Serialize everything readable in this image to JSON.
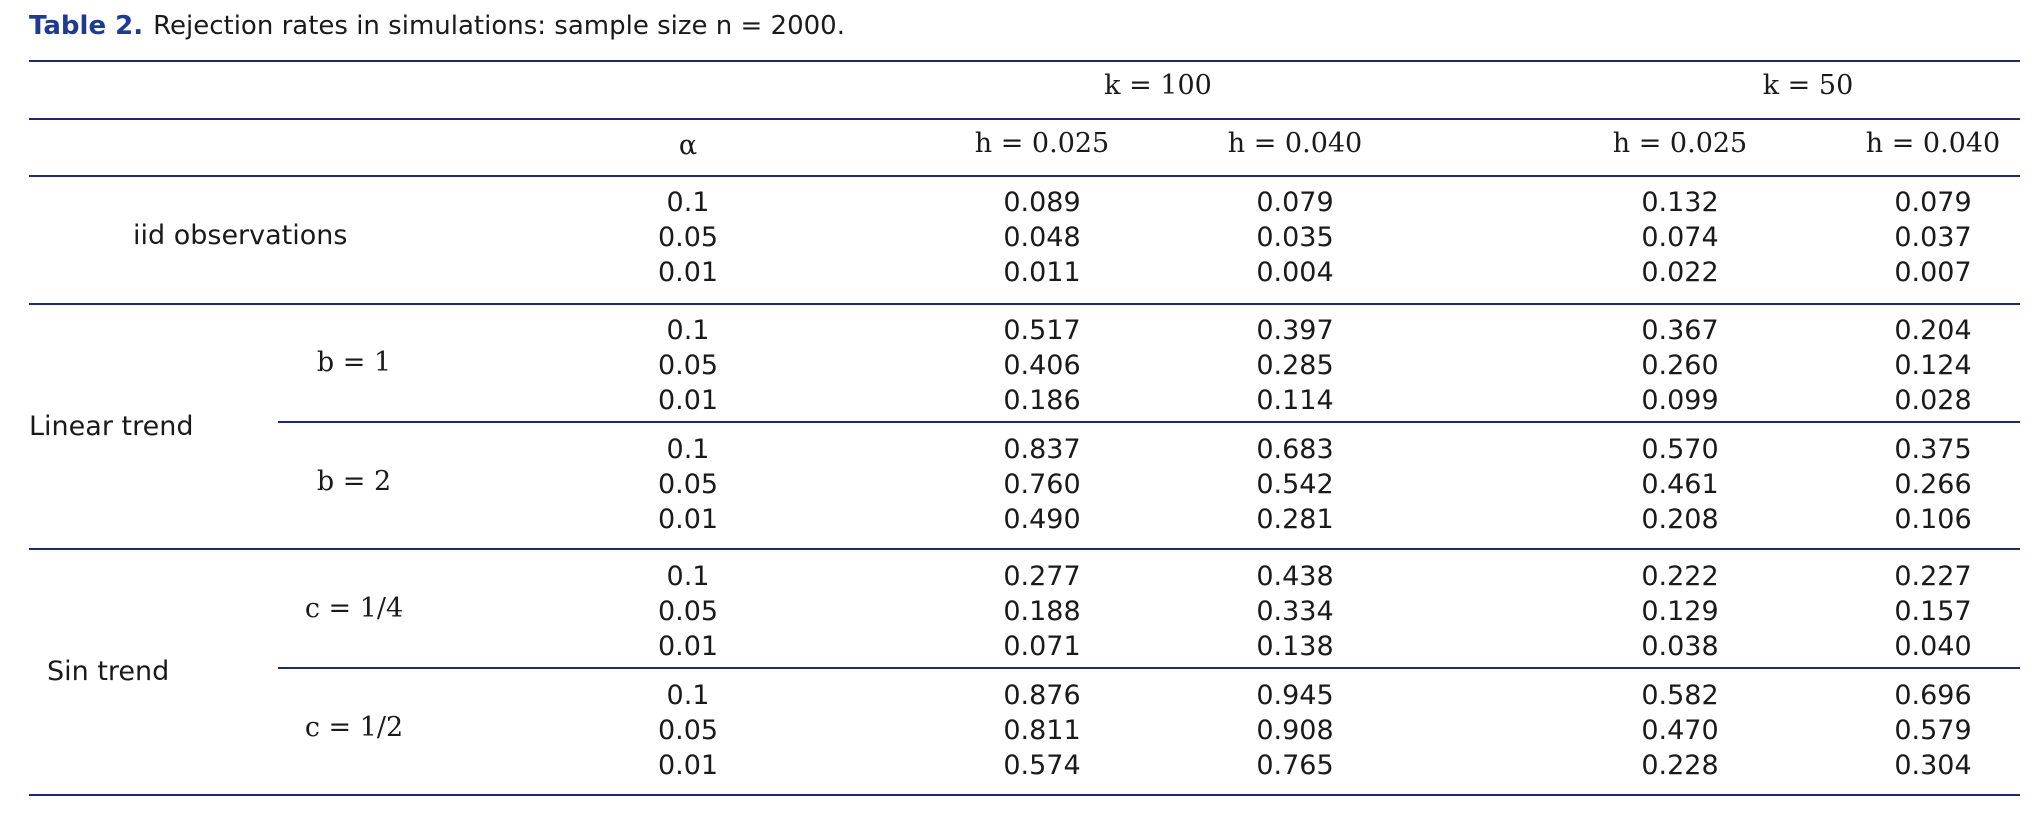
{
  "caption": {
    "label": "Table 2.",
    "text": "Rejection rates in simulations: sample size n = 2000."
  },
  "headers": {
    "group_k100": "k = 100",
    "group_k50": "k = 50",
    "alpha": "α",
    "h1": "h = 0.025",
    "h2": "h = 0.040",
    "h3": "h = 0.025",
    "h4": "h = 0.040"
  },
  "alpha_levels": [
    "0.1",
    "0.05",
    "0.01"
  ],
  "sections": [
    {
      "label": "iid observations",
      "subgroups": [
        {
          "param": "",
          "k100_h025": [
            "0.089",
            "0.048",
            "0.011"
          ],
          "k100_h040": [
            "0.079",
            "0.035",
            "0.004"
          ],
          "k50_h025": [
            "0.132",
            "0.074",
            "0.022"
          ],
          "k50_h040": [
            "0.079",
            "0.037",
            "0.007"
          ]
        }
      ]
    },
    {
      "label": "Linear trend",
      "subgroups": [
        {
          "param": "b = 1",
          "k100_h025": [
            "0.517",
            "0.406",
            "0.186"
          ],
          "k100_h040": [
            "0.397",
            "0.285",
            "0.114"
          ],
          "k50_h025": [
            "0.367",
            "0.260",
            "0.099"
          ],
          "k50_h040": [
            "0.204",
            "0.124",
            "0.028"
          ]
        },
        {
          "param": "b = 2",
          "k100_h025": [
            "0.837",
            "0.760",
            "0.490"
          ],
          "k100_h040": [
            "0.683",
            "0.542",
            "0.281"
          ],
          "k50_h025": [
            "0.570",
            "0.461",
            "0.208"
          ],
          "k50_h040": [
            "0.375",
            "0.266",
            "0.106"
          ]
        }
      ]
    },
    {
      "label": "Sin trend",
      "subgroups": [
        {
          "param": "c = 1/4",
          "k100_h025": [
            "0.277",
            "0.188",
            "0.071"
          ],
          "k100_h040": [
            "0.438",
            "0.334",
            "0.138"
          ],
          "k50_h025": [
            "0.222",
            "0.129",
            "0.038"
          ],
          "k50_h040": [
            "0.227",
            "0.157",
            "0.040"
          ]
        },
        {
          "param": "c = 1/2",
          "k100_h025": [
            "0.876",
            "0.811",
            "0.574"
          ],
          "k100_h040": [
            "0.945",
            "0.908",
            "0.765"
          ],
          "k50_h025": [
            "0.582",
            "0.470",
            "0.228"
          ],
          "k50_h040": [
            "0.696",
            "0.579",
            "0.304"
          ]
        }
      ]
    }
  ]
}
